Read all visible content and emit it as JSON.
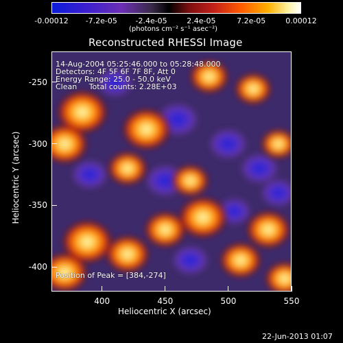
{
  "colorbar": {
    "tick_labels": [
      "-0.00012",
      "-7.2e-05",
      "-2.4e-05",
      "2.4e-05",
      "7.2e-05",
      "0.00012"
    ],
    "unit_label": "(photons cm⁻² s⁻¹ asec⁻²)",
    "range": [
      -0.00012,
      0.00012
    ]
  },
  "chart_data": {
    "type": "heatmap",
    "title": "Reconstructed RHESSI Image",
    "xlabel": "Heliocentric X (arcsec)",
    "ylabel": "Heliocentric Y (arcsec)",
    "xlim": [
      360,
      550
    ],
    "ylim": [
      -420,
      -225
    ],
    "x_ticks": [
      400,
      450,
      500,
      550
    ],
    "y_ticks": [
      -250,
      -300,
      -350,
      -400
    ],
    "annotations": [
      "14-Aug-2004 05:25:46.000 to 05:28:48.000",
      "Detectors: 4F 5F 6F 7F 8F, Att 0",
      "Energy Range: 25.0 - 50.0 keV",
      "Clean     Total counts: 2.28E+03"
    ],
    "peak_label": "Position of Peak = [384,-274]",
    "hot_spots": [
      {
        "x": 384,
        "y": -274,
        "value": 0.00012
      },
      {
        "x": 370,
        "y": -300,
        "value": 0.0001
      },
      {
        "x": 435,
        "y": -288,
        "value": 0.00011
      },
      {
        "x": 420,
        "y": -320,
        "value": 7e-05
      },
      {
        "x": 480,
        "y": -360,
        "value": 0.00011
      },
      {
        "x": 485,
        "y": -245,
        "value": 7e-05
      },
      {
        "x": 532,
        "y": -370,
        "value": 9e-05
      },
      {
        "x": 388,
        "y": -380,
        "value": 0.00012
      },
      {
        "x": 420,
        "y": -390,
        "value": 9e-05
      },
      {
        "x": 520,
        "y": -255,
        "value": 6e-05
      },
      {
        "x": 540,
        "y": -300,
        "value": 5e-05
      },
      {
        "x": 470,
        "y": -330,
        "value": 6e-05
      },
      {
        "x": 450,
        "y": -370,
        "value": 8e-05
      },
      {
        "x": 370,
        "y": -405,
        "value": 0.0001
      },
      {
        "x": 510,
        "y": -395,
        "value": 8e-05
      },
      {
        "x": 545,
        "y": -410,
        "value": 7e-05
      }
    ],
    "cold_spots": [
      {
        "x": 460,
        "y": -280,
        "value": -0.00011
      },
      {
        "x": 500,
        "y": -300,
        "value": -9e-05
      },
      {
        "x": 390,
        "y": -325,
        "value": -8e-05
      },
      {
        "x": 450,
        "y": -330,
        "value": -0.0001
      },
      {
        "x": 525,
        "y": -320,
        "value": -9e-05
      },
      {
        "x": 410,
        "y": -250,
        "value": -7e-05
      },
      {
        "x": 505,
        "y": -355,
        "value": -6e-05
      },
      {
        "x": 470,
        "y": -395,
        "value": -8e-05
      },
      {
        "x": 540,
        "y": -340,
        "value": -7e-05
      }
    ]
  },
  "footer": {
    "date": "22-Jun-2013 01:07"
  }
}
